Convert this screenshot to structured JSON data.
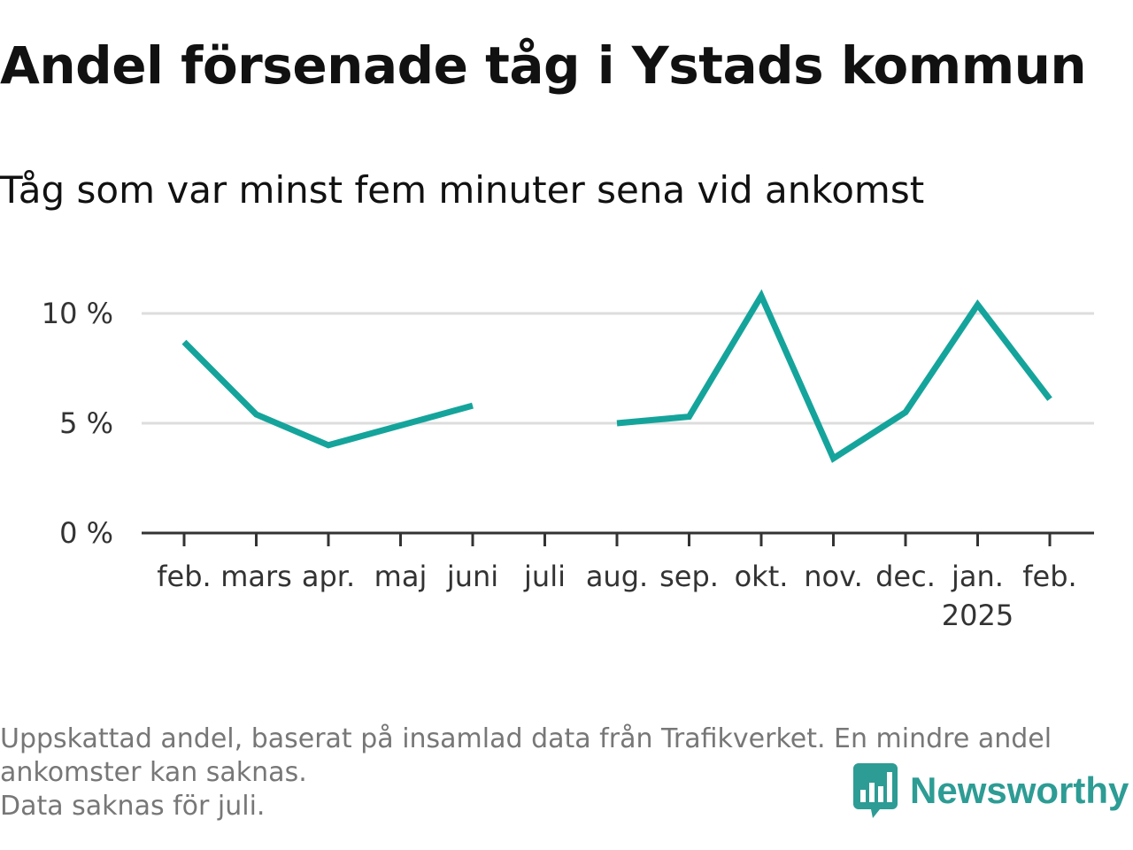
{
  "title": "Andel försenade tåg i Ystads kommun",
  "subtitle": "Tåg som var minst fem minuter sena vid ankomst",
  "footnote": {
    "line1": "Uppskattad andel, baserat på insamlad data från Trafikverket. En mindre andel",
    "line2": "ankomster kan saknas.",
    "line3": "Data saknas för juli."
  },
  "brand": {
    "name": "Newsworthy",
    "icon": "newsworthy-logo-icon",
    "color": "#2d9c94"
  },
  "chart_data": {
    "type": "line",
    "categories": [
      "feb.",
      "mars",
      "apr.",
      "maj",
      "juni",
      "juli",
      "aug.",
      "sep.",
      "okt.",
      "nov.",
      "dec.",
      "jan.",
      "feb."
    ],
    "category_sublabels": [
      "",
      "",
      "",
      "",
      "",
      "",
      "",
      "",
      "",
      "",
      "",
      "2025",
      ""
    ],
    "series": [
      {
        "values": [
          8.7,
          5.4,
          4.0,
          4.9,
          5.8,
          null,
          5.0,
          5.3,
          10.8,
          3.4,
          5.5,
          10.4,
          6.1
        ],
        "color": "#15a49b"
      }
    ],
    "yticks": [
      0,
      5,
      10
    ],
    "ytick_labels": [
      "0 %",
      "5 %",
      "10 %"
    ],
    "ylim": [
      0,
      12
    ],
    "grid": true,
    "xlabel": "",
    "ylabel": ""
  }
}
